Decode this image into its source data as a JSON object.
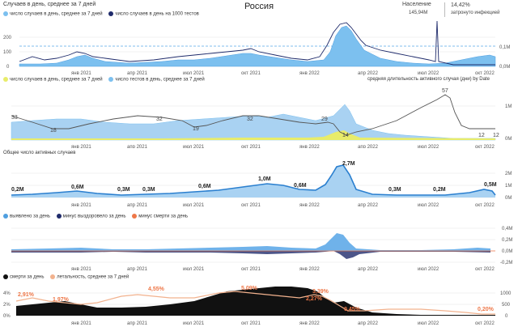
{
  "header": {
    "panel_title": "Случаев в день, среднее за 7 дней",
    "country": "Россия",
    "population_label": "Население",
    "population_value": "145,94M",
    "infected_pct": "14,42%",
    "infected_label": "затронуто инфекцией"
  },
  "colors": {
    "light_blue": "#7cc0ef",
    "mid_blue": "#4f9fe0",
    "dark_navy": "#1f2b6b",
    "grid_dash": "#59a7e8",
    "yellow": "#e8ec6a",
    "gray_line": "#555555",
    "orange": "#ee7748",
    "salmon": "#f2b28e",
    "black": "#111111"
  },
  "months": [
    "янв 2021",
    "апр 2021",
    "июл 2021",
    "окт 2021",
    "янв 2022",
    "апр 2022",
    "июл 2022",
    "окт 2022"
  ],
  "panel1": {
    "legend": [
      {
        "label": "число случаев в день, среднее за 7 дней",
        "icon": "light-blue-dot"
      },
      {
        "label": "число случаев в день на 1000 тестов",
        "icon": "navy-dot"
      }
    ],
    "y_left": [
      "200",
      "100",
      "0"
    ],
    "y_right": [
      "0,1M",
      "0,0M"
    ]
  },
  "panel2": {
    "legend": [
      {
        "label": "число случаев в день, среднее за 7 дней",
        "icon": "yellow-dot"
      },
      {
        "label": "число тестов в день, среднее за 7 дней",
        "icon": "light-blue-dot"
      }
    ],
    "right_title": "средняя длительность активного случая (дни) by Date",
    "y_right": [
      "1M",
      "0M"
    ],
    "labels": [
      "33",
      "18",
      "32",
      "19",
      "32",
      "29",
      "14",
      "57",
      "12",
      "12"
    ]
  },
  "panel3": {
    "title": "Общее число активных случаев",
    "y_right": [
      "2M",
      "1M",
      "0M"
    ],
    "labels": [
      "0,2M",
      "0,6M",
      "0,3M",
      "0,3M",
      "0,6M",
      "1,0M",
      "0,6M",
      "2,7M",
      "0,3M",
      "0,2M",
      "0,5M"
    ]
  },
  "panel4": {
    "legend": [
      {
        "label": "выявлено за день",
        "icon": "mid-blue-dot"
      },
      {
        "label": "минус выздоровело за день",
        "icon": "navy-dot"
      },
      {
        "label": "минус смерти за день",
        "icon": "orange-dot"
      }
    ],
    "y_right": [
      "0,4M",
      "0,2M",
      "0,0M",
      "-0,2M"
    ]
  },
  "panel5": {
    "legend": [
      {
        "label": "смерти за день",
        "icon": "black-dot"
      },
      {
        "label": "летальность, среднее за 7 дней",
        "icon": "salmon-dot"
      }
    ],
    "y_left": [
      "4%",
      "2%",
      "0%"
    ],
    "y_right": [
      "1000",
      "500",
      "0"
    ],
    "labels": [
      "2,91%",
      "1,97%",
      "4,55%",
      "5,09%",
      "3,39%",
      "2,27%",
      "0,45%",
      "0,20%"
    ]
  }
}
